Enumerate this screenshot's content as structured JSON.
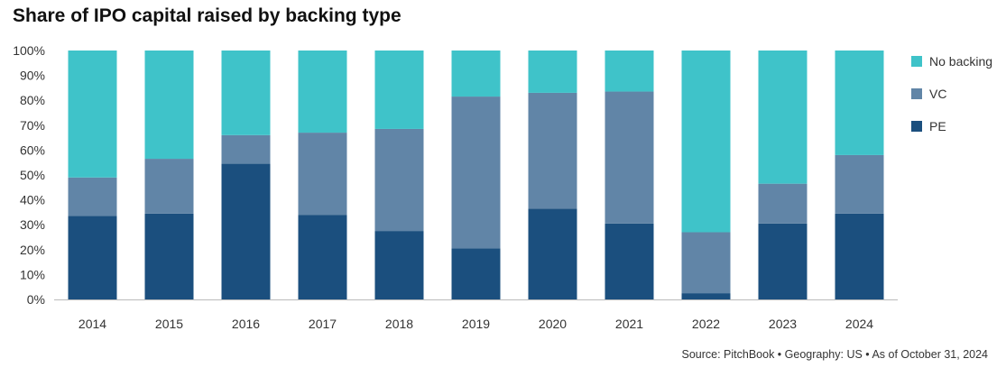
{
  "title": "Share of IPO capital raised by backing type",
  "source": "Source: PitchBook • Geography: US • As of October 31, 2024",
  "chart_data": {
    "type": "bar",
    "stacked": true,
    "categories": [
      "2014",
      "2015",
      "2016",
      "2017",
      "2018",
      "2019",
      "2020",
      "2021",
      "2022",
      "2023",
      "2024"
    ],
    "series": [
      {
        "name": "PE",
        "color": "#1b4f7e",
        "values": [
          33.5,
          34.5,
          54.5,
          34,
          27.5,
          20.5,
          36.5,
          30.5,
          2.5,
          30.5,
          34.5
        ]
      },
      {
        "name": "VC",
        "color": "#6185a7",
        "values": [
          15.5,
          22,
          11.5,
          33,
          41,
          61,
          46.5,
          53,
          24.5,
          16,
          23.5
        ]
      },
      {
        "name": "No backing",
        "color": "#3fc3c9",
        "values": [
          51,
          43.5,
          34,
          33,
          31.5,
          18.5,
          17,
          16.5,
          73,
          53.5,
          42
        ]
      }
    ],
    "y_ticks": [
      "0%",
      "10%",
      "20%",
      "30%",
      "40%",
      "50%",
      "60%",
      "70%",
      "80%",
      "90%",
      "100%"
    ],
    "ylim": [
      0,
      100
    ],
    "grid": false,
    "legend_position": "right",
    "legend_order": [
      "No backing",
      "VC",
      "PE"
    ]
  }
}
